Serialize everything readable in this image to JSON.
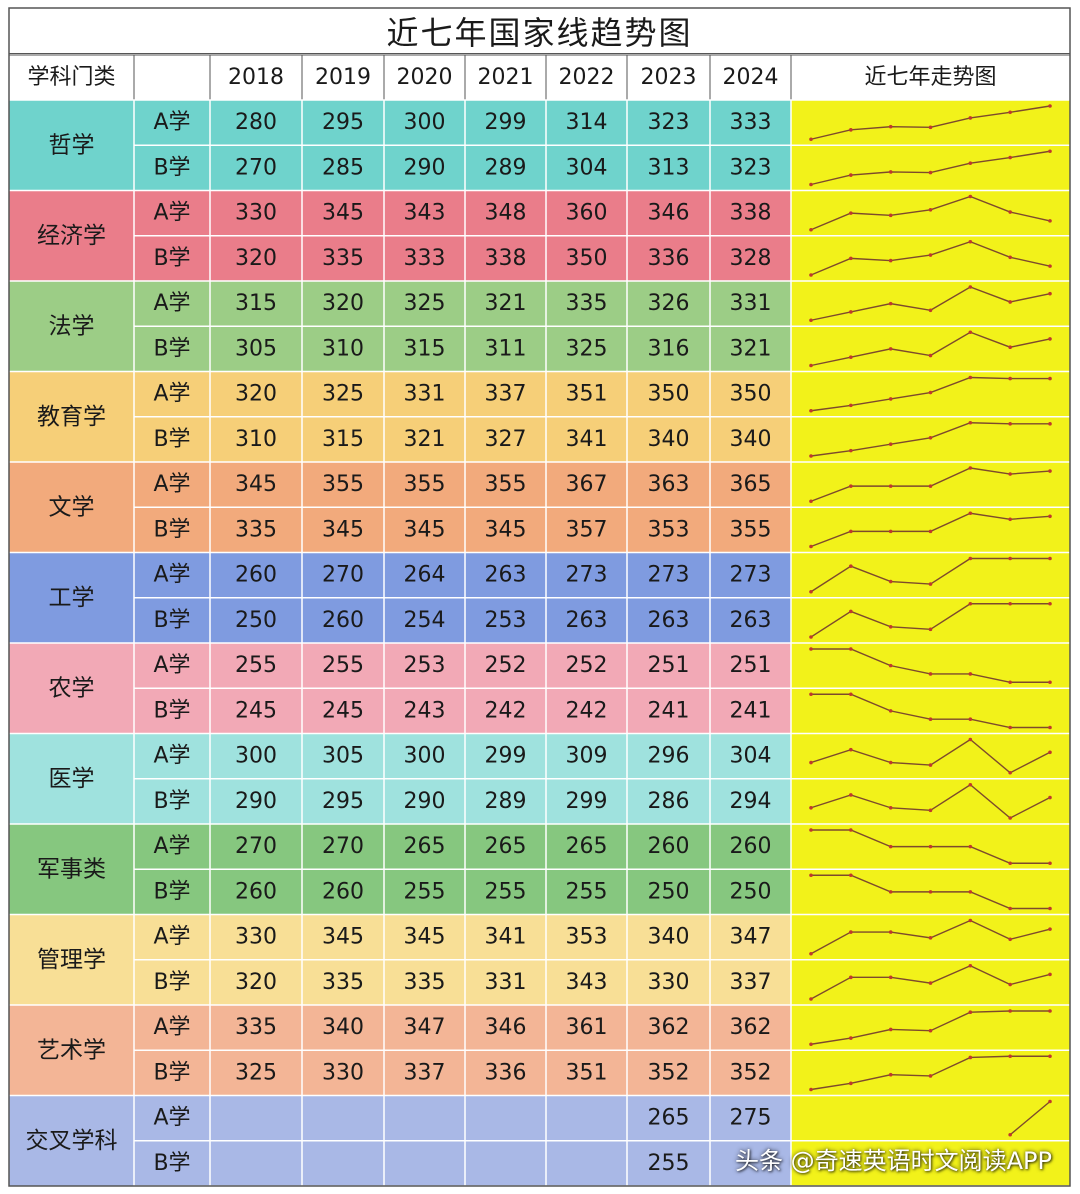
{
  "title": "近七年国家线趋势图",
  "watermark": "头条 @奇速英语时文阅读APP",
  "chart_data": {
    "type": "table",
    "title": "近七年国家线趋势图",
    "headers": {
      "category": "学科门类",
      "years": [
        "2018",
        "2019",
        "2020",
        "2021",
        "2022",
        "2023",
        "2024"
      ],
      "trend": "近七年走势图"
    },
    "groups": [
      {
        "name": "哲学",
        "color": "#6fd3cc",
        "rows": [
          {
            "label": "A学",
            "values": [
              280,
              295,
              300,
              299,
              314,
              323,
              333
            ]
          },
          {
            "label": "B学",
            "values": [
              270,
              285,
              290,
              289,
              304,
              313,
              323
            ]
          }
        ]
      },
      {
        "name": "经济学",
        "color": "#ea7d8a",
        "rows": [
          {
            "label": "A学",
            "values": [
              330,
              345,
              343,
              348,
              360,
              346,
              338
            ]
          },
          {
            "label": "B学",
            "values": [
              320,
              335,
              333,
              338,
              350,
              336,
              328
            ]
          }
        ]
      },
      {
        "name": "法学",
        "color": "#9ccd86",
        "rows": [
          {
            "label": "A学",
            "values": [
              315,
              320,
              325,
              321,
              335,
              326,
              331
            ]
          },
          {
            "label": "B学",
            "values": [
              305,
              310,
              315,
              311,
              325,
              316,
              321
            ]
          }
        ]
      },
      {
        "name": "教育学",
        "color": "#f6cf78",
        "rows": [
          {
            "label": "A学",
            "values": [
              320,
              325,
              331,
              337,
              351,
              350,
              350
            ]
          },
          {
            "label": "B学",
            "values": [
              310,
              315,
              321,
              327,
              341,
              340,
              340
            ]
          }
        ]
      },
      {
        "name": "文学",
        "color": "#f2aa7c",
        "rows": [
          {
            "label": "A学",
            "values": [
              345,
              355,
              355,
              355,
              367,
              363,
              365
            ]
          },
          {
            "label": "B学",
            "values": [
              335,
              345,
              345,
              345,
              357,
              353,
              355
            ]
          }
        ]
      },
      {
        "name": "工学",
        "color": "#7f9be0",
        "rows": [
          {
            "label": "A学",
            "values": [
              260,
              270,
              264,
              263,
              273,
              273,
              273
            ]
          },
          {
            "label": "B学",
            "values": [
              250,
              260,
              254,
              253,
              263,
              263,
              263
            ]
          }
        ]
      },
      {
        "name": "农学",
        "color": "#f2a9b6",
        "rows": [
          {
            "label": "A学",
            "values": [
              255,
              255,
              253,
              252,
              252,
              251,
              251
            ]
          },
          {
            "label": "B学",
            "values": [
              245,
              245,
              243,
              242,
              242,
              241,
              241
            ]
          }
        ]
      },
      {
        "name": "医学",
        "color": "#9fe2de",
        "rows": [
          {
            "label": "A学",
            "values": [
              300,
              305,
              300,
              299,
              309,
              296,
              304
            ]
          },
          {
            "label": "B学",
            "values": [
              290,
              295,
              290,
              289,
              299,
              286,
              294
            ]
          }
        ]
      },
      {
        "name": "军事类",
        "color": "#86c77f",
        "rows": [
          {
            "label": "A学",
            "values": [
              270,
              270,
              265,
              265,
              265,
              260,
              260
            ]
          },
          {
            "label": "B学",
            "values": [
              260,
              260,
              255,
              255,
              255,
              250,
              250
            ]
          }
        ]
      },
      {
        "name": "管理学",
        "color": "#f8df96",
        "rows": [
          {
            "label": "A学",
            "values": [
              330,
              345,
              345,
              341,
              353,
              340,
              347
            ]
          },
          {
            "label": "B学",
            "values": [
              320,
              335,
              335,
              331,
              343,
              330,
              337
            ]
          }
        ]
      },
      {
        "name": "艺术学",
        "color": "#f3b596",
        "rows": [
          {
            "label": "A学",
            "values": [
              335,
              340,
              347,
              346,
              361,
              362,
              362
            ]
          },
          {
            "label": "B学",
            "values": [
              325,
              330,
              337,
              336,
              351,
              352,
              352
            ]
          }
        ]
      },
      {
        "name": "交叉学科",
        "color": "#a9b8e6",
        "rows": [
          {
            "label": "A学",
            "values": [
              null,
              null,
              null,
              null,
              null,
              265,
              275
            ]
          },
          {
            "label": "B学",
            "values": [
              null,
              null,
              null,
              null,
              null,
              255,
              null
            ]
          }
        ]
      }
    ]
  },
  "colors": {
    "sparkline_bg": "#f2f21a",
    "sparkline_line": "#7d4a2c",
    "sparkline_point": "#c0392b",
    "header_bg": "#ffffff",
    "grid_line": "#ffffff"
  }
}
